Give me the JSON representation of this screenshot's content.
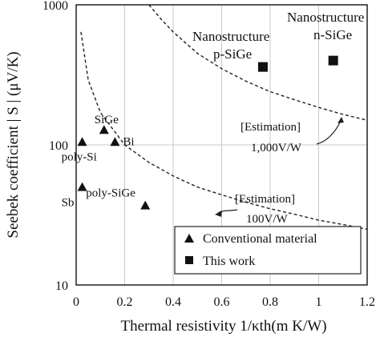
{
  "chart_data": {
    "type": "scatter",
    "xlabel": "Thermal resistivity 1/κth(m K/W)",
    "ylabel": "Seebek coefficient | S | (μV/K)",
    "xlim": [
      0,
      1.2
    ],
    "ylim": [
      10,
      1000
    ],
    "yscale": "log",
    "grid": true,
    "x_ticks": [
      "0",
      "0.2",
      "0.4",
      "0.6",
      "0.8",
      "1",
      "1.2"
    ],
    "y_ticks": [
      "10",
      "100",
      "1000"
    ],
    "series": [
      {
        "name": "Conventional material",
        "marker": "triangle",
        "points": [
          {
            "label": "SiGe",
            "x": 0.115,
            "y": 128
          },
          {
            "label": "poly-Si",
            "x": 0.025,
            "y": 105
          },
          {
            "label": "Bi",
            "x": 0.16,
            "y": 105
          },
          {
            "label": "Sb",
            "x": 0.025,
            "y": 50
          },
          {
            "label": "poly-SiGe",
            "x": 0.285,
            "y": 37
          }
        ]
      },
      {
        "name": "This work",
        "marker": "square",
        "points": [
          {
            "label": "Nanostructure p-SiGe",
            "x": 0.77,
            "y": 360
          },
          {
            "label": "Nanostructure n-SiGe",
            "x": 1.06,
            "y": 400
          }
        ]
      }
    ],
    "curves": [
      {
        "label": "[Estimation] 100V/W",
        "x": [
          0.02,
          0.05,
          0.1,
          0.2,
          0.3,
          0.4,
          0.5,
          0.6,
          0.7,
          0.8,
          0.9,
          1.0,
          1.1,
          1.2
        ],
        "y": [
          640,
          290,
          170,
          100,
          75,
          60,
          50,
          44,
          39,
          35,
          32,
          29,
          27,
          25
        ]
      },
      {
        "label": "[Estimation] 1,000V/W",
        "x": [
          0.3,
          0.35,
          0.4,
          0.5,
          0.6,
          0.7,
          0.8,
          0.9,
          1.0,
          1.1,
          1.2
        ],
        "y": [
          1000,
          790,
          640,
          450,
          350,
          285,
          240,
          210,
          185,
          165,
          150
        ]
      }
    ],
    "annotations": {
      "p_sige": [
        "Nanostructure",
        "p-SiGe"
      ],
      "n_sige": [
        "Nanostructure",
        "n-SiGe"
      ],
      "est_1000": [
        "[Estimation]",
        "1,000V/W"
      ],
      "est_100": [
        "[Estimation]",
        "100V/W"
      ]
    },
    "legend": {
      "placement": "bottom-right",
      "items": [
        "Conventional material",
        "This work"
      ]
    }
  }
}
